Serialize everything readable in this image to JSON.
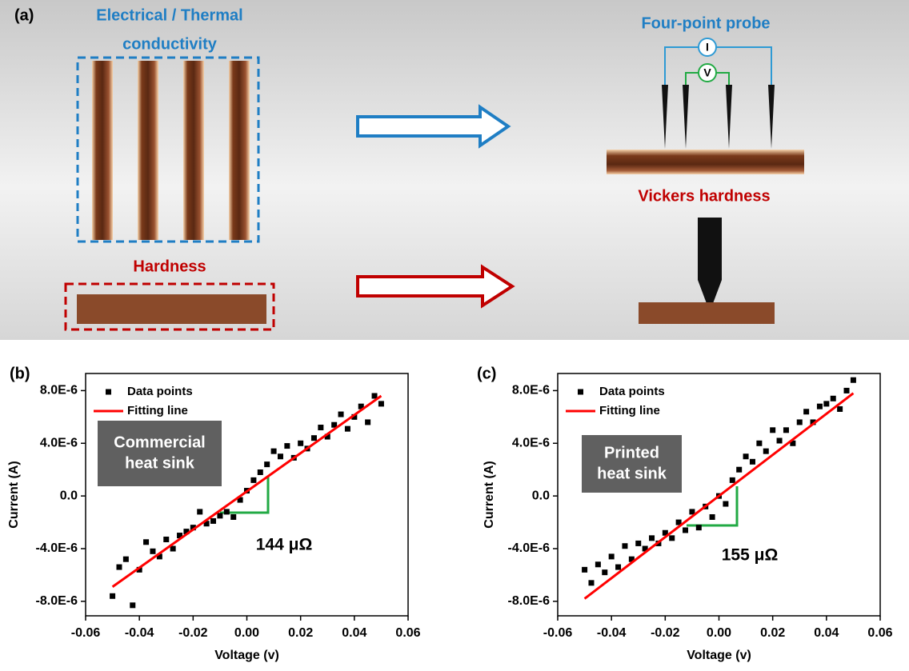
{
  "diagram": {
    "panel_label": "(a)",
    "conductivity_lines": [
      "Electrical / Thermal",
      "conductivity"
    ],
    "hardness": "Hardness",
    "four_point_probe": "Four-point probe",
    "current_symbol": "I",
    "voltage_symbol": "V",
    "vickers": "Vickers hardness"
  },
  "chart_data": [
    {
      "type": "scatter",
      "panel_label": "(b)",
      "xlabel": "Voltage (v)",
      "ylabel": "Current (A)",
      "box_lines": [
        "Commercial",
        "heat sink"
      ],
      "annotation": "144 μΩ",
      "legend": "upper left",
      "xlim": [
        -0.06,
        0.06
      ],
      "ylim": [
        -9.1e-06,
        9.3e-06
      ],
      "xticks": [
        -0.06,
        -0.04,
        -0.02,
        {
          "value": 0,
          "label": "0.00"
        },
        0.02,
        0.04,
        0.06
      ],
      "yticks": [
        {
          "value": -8e-06,
          "label": "-8.0E-6"
        },
        {
          "value": -4e-06,
          "label": "-4.0E-6"
        },
        {
          "value": 0,
          "label": "0.0"
        },
        {
          "value": 4e-06,
          "label": "4.0E-6"
        },
        {
          "value": 8e-06,
          "label": "8.0E-6"
        }
      ],
      "series": [
        {
          "name": "Data points",
          "type": "scatter",
          "color": "#000000",
          "x": [
            -0.05,
            -0.0475,
            -0.045,
            -0.0425,
            -0.04,
            -0.0375,
            -0.035,
            -0.0325,
            -0.03,
            -0.0275,
            -0.025,
            -0.0225,
            -0.02,
            -0.0175,
            -0.015,
            -0.0125,
            -0.01,
            -0.0075,
            -0.005,
            -0.0025,
            0,
            0.0025,
            0.005,
            0.0075,
            0.01,
            0.0125,
            0.015,
            0.0175,
            0.02,
            0.0225,
            0.025,
            0.0275,
            0.03,
            0.0325,
            0.035,
            0.0375,
            0.04,
            0.0425,
            0.045,
            0.0475,
            0.05
          ],
          "values": [
            -7.6e-06,
            -5.4e-06,
            -4.8e-06,
            -8.3e-06,
            -5.6e-06,
            -3.5e-06,
            -4.2e-06,
            -4.6e-06,
            -3.3e-06,
            -4e-06,
            -3e-06,
            -2.7e-06,
            -2.4e-06,
            -1.2e-06,
            -2.1e-06,
            -1.9e-06,
            -1.5e-06,
            -1.2e-06,
            -1.6e-06,
            -3e-07,
            4e-07,
            1.2e-06,
            1.8e-06,
            2.4e-06,
            3.4e-06,
            3e-06,
            3.8e-06,
            2.9e-06,
            4e-06,
            3.6e-06,
            4.4e-06,
            5.2e-06,
            4.5e-06,
            5.4e-06,
            6.2e-06,
            5.1e-06,
            6e-06,
            6.8e-06,
            5.6e-06,
            7.6e-06,
            7e-06
          ]
        },
        {
          "name": "Fitting line",
          "type": "line",
          "color": "#ff0000",
          "x": [
            -0.05,
            0.05
          ],
          "values": [
            -6.9e-06,
            7.6e-06
          ]
        }
      ]
    },
    {
      "type": "scatter",
      "panel_label": "(c)",
      "xlabel": "Voltage (v)",
      "ylabel": "Current (A)",
      "box_lines": [
        "Printed",
        "heat sink"
      ],
      "annotation": "155 μΩ",
      "legend": "upper left",
      "xlim": [
        -0.06,
        0.06
      ],
      "ylim": [
        -9.1e-06,
        9.3e-06
      ],
      "xticks": [
        -0.06,
        -0.04,
        -0.02,
        {
          "value": 0,
          "label": "0.00"
        },
        0.02,
        0.04,
        0.06
      ],
      "yticks": [
        {
          "value": -8e-06,
          "label": "-8.0E-6"
        },
        {
          "value": -4e-06,
          "label": "-4.0E-6"
        },
        {
          "value": 0,
          "label": "0.0"
        },
        {
          "value": 4e-06,
          "label": "4.0E-6"
        },
        {
          "value": 8e-06,
          "label": "8.0E-6"
        }
      ],
      "series": [
        {
          "name": "Data points",
          "type": "scatter",
          "color": "#000000",
          "x": [
            -0.05,
            -0.0475,
            -0.045,
            -0.0425,
            -0.04,
            -0.0375,
            -0.035,
            -0.0325,
            -0.03,
            -0.0275,
            -0.025,
            -0.0225,
            -0.02,
            -0.0175,
            -0.015,
            -0.0125,
            -0.01,
            -0.0075,
            -0.005,
            -0.0025,
            0,
            0.0025,
            0.005,
            0.0075,
            0.01,
            0.0125,
            0.015,
            0.0175,
            0.02,
            0.0225,
            0.025,
            0.0275,
            0.03,
            0.0325,
            0.035,
            0.0375,
            0.04,
            0.0425,
            0.045,
            0.0475,
            0.05
          ],
          "values": [
            -5.6e-06,
            -6.6e-06,
            -5.2e-06,
            -5.8e-06,
            -4.6e-06,
            -5.4e-06,
            -3.8e-06,
            -4.8e-06,
            -3.6e-06,
            -4e-06,
            -3.2e-06,
            -3.6e-06,
            -2.8e-06,
            -3.2e-06,
            -2e-06,
            -2.6e-06,
            -1.2e-06,
            -2.4e-06,
            -8e-07,
            -1.6e-06,
            0,
            -6e-07,
            1.2e-06,
            2e-06,
            3e-06,
            2.6e-06,
            4e-06,
            3.4e-06,
            5e-06,
            4.2e-06,
            5e-06,
            4e-06,
            5.6e-06,
            6.4e-06,
            5.6e-06,
            6.8e-06,
            7e-06,
            7.4e-06,
            6.6e-06,
            8e-06,
            8.8e-06
          ]
        },
        {
          "name": "Fitting line",
          "type": "line",
          "color": "#ff0000",
          "x": [
            -0.05,
            0.05
          ],
          "values": [
            -7.8e-06,
            7.8e-06
          ]
        }
      ]
    }
  ]
}
